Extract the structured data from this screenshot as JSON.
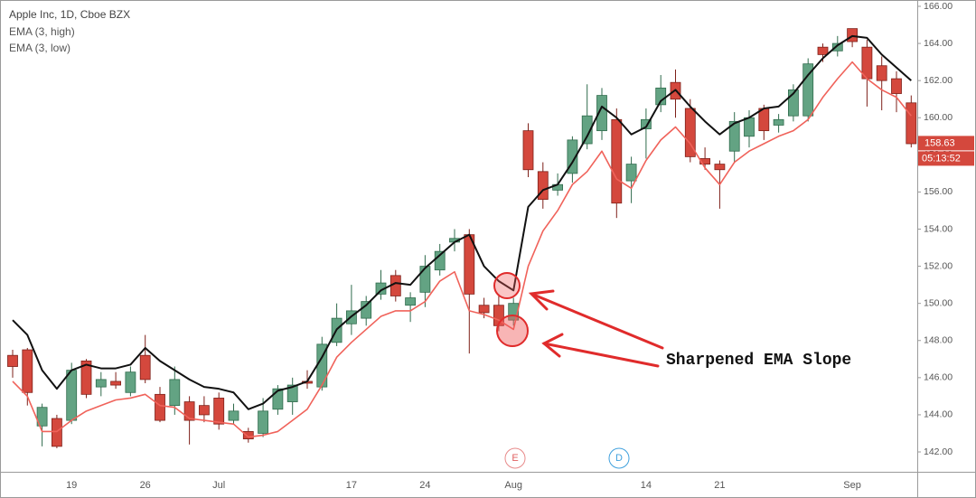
{
  "chart_data": {
    "type": "candlestick",
    "title": "Apple Inc, 1D, Cboe BZX",
    "annotation": "Sharpened EMA Slope",
    "last_price": 158.63,
    "countdown": "05:13:52",
    "events": [
      "E",
      "D"
    ],
    "up_color": "#63a383",
    "up_border": "#2f6b4c",
    "down_color": "#d4483d",
    "down_border": "#7e2019",
    "categories": [
      null,
      null,
      null,
      null,
      "19",
      null,
      null,
      null,
      null,
      "26",
      null,
      null,
      null,
      null,
      "Jul",
      null,
      null,
      null,
      null,
      null,
      null,
      null,
      null,
      "17",
      null,
      null,
      null,
      null,
      "24",
      null,
      null,
      null,
      null,
      null,
      "Aug",
      null,
      null,
      null,
      null,
      null,
      null,
      null,
      null,
      "14",
      null,
      null,
      null,
      null,
      "21",
      null,
      null,
      null,
      null,
      null,
      null,
      null,
      null,
      "Sep",
      null,
      null,
      null,
      null
    ],
    "open": [
      147.2,
      147.5,
      143.4,
      143.8,
      143.7,
      146.9,
      145.5,
      145.8,
      145.2,
      147.2,
      145.1,
      144.5,
      144.7,
      144.5,
      144.9,
      143.7,
      143.1,
      143.0,
      144.3,
      144.7,
      145.8,
      145.5,
      147.9,
      148.9,
      149.2,
      150.5,
      151.5,
      149.9,
      150.6,
      151.8,
      153.3,
      153.7,
      149.9,
      149.9,
      149.1,
      159.3,
      157.1,
      156.1,
      157.0,
      158.6,
      159.3,
      159.9,
      156.6,
      159.4,
      160.7,
      161.9,
      160.5,
      157.8,
      157.5,
      158.2,
      159.0,
      160.5,
      159.6,
      160.1,
      160.1,
      163.8,
      163.6,
      164.8,
      163.8,
      162.8,
      162.1,
      160.8
    ],
    "high": [
      147.5,
      147.6,
      144.6,
      144.0,
      146.8,
      147.0,
      146.3,
      146.3,
      146.6,
      148.3,
      145.5,
      146.6,
      145.0,
      145.0,
      145.2,
      144.6,
      143.3,
      144.9,
      145.6,
      146.0,
      146.4,
      148.2,
      150.0,
      151.0,
      150.4,
      151.8,
      151.8,
      150.6,
      152.6,
      153.2,
      154.0,
      154.0,
      150.3,
      150.5,
      150.3,
      159.7,
      157.6,
      157.0,
      159.0,
      161.8,
      161.6,
      160.5,
      157.9,
      160.5,
      162.3,
      162.6,
      161.0,
      158.4,
      157.7,
      160.3,
      160.4,
      160.7,
      160.2,
      161.8,
      163.2,
      164.0,
      164.4,
      164.8,
      164.2,
      163.3,
      162.5,
      161.2
    ],
    "low": [
      146.0,
      144.5,
      142.3,
      142.2,
      143.5,
      144.9,
      145.0,
      145.4,
      145.0,
      145.7,
      143.6,
      144.0,
      142.4,
      143.6,
      143.2,
      143.5,
      142.5,
      142.8,
      144.0,
      144.0,
      145.4,
      145.3,
      147.7,
      148.3,
      148.8,
      150.2,
      150.1,
      149.0,
      149.8,
      151.5,
      152.8,
      147.3,
      149.2,
      148.5,
      148.8,
      156.8,
      155.1,
      155.8,
      156.5,
      158.3,
      158.8,
      154.6,
      155.4,
      157.8,
      160.3,
      160.0,
      157.6,
      157.2,
      155.1,
      157.6,
      158.4,
      158.8,
      159.2,
      159.8,
      159.8,
      163.0,
      163.3,
      163.8,
      160.6,
      160.4,
      160.3,
      158.4
    ],
    "close": [
      146.6,
      145.2,
      144.4,
      142.3,
      146.4,
      145.1,
      145.9,
      145.6,
      146.3,
      145.9,
      143.7,
      145.9,
      143.7,
      144.0,
      143.5,
      144.2,
      142.7,
      144.2,
      145.4,
      145.6,
      145.7,
      147.8,
      149.2,
      149.6,
      150.1,
      151.1,
      150.4,
      150.3,
      152.0,
      152.8,
      153.5,
      150.5,
      149.5,
      148.8,
      150.0,
      157.2,
      155.6,
      156.4,
      158.8,
      160.1,
      161.2,
      155.4,
      157.5,
      159.9,
      161.6,
      161.0,
      157.9,
      157.5,
      157.2,
      159.8,
      160.0,
      159.3,
      159.9,
      161.5,
      162.9,
      163.4,
      164.0,
      164.1,
      162.1,
      162.0,
      161.3,
      158.6
    ],
    "series": [
      {
        "name": "EMA (3, high)",
        "color": "#111111",
        "values": [
          149.1,
          148.3,
          146.4,
          145.4,
          146.4,
          146.7,
          146.5,
          146.5,
          146.7,
          147.6,
          146.9,
          146.4,
          145.9,
          145.5,
          145.4,
          145.2,
          144.3,
          144.6,
          145.3,
          145.5,
          145.8,
          147.1,
          148.6,
          149.3,
          149.9,
          150.7,
          151.1,
          151.0,
          151.9,
          152.6,
          153.3,
          153.7,
          152.0,
          151.2,
          150.7,
          155.2,
          156.1,
          156.4,
          157.6,
          159.0,
          160.6,
          160.0,
          159.1,
          159.5,
          160.9,
          161.5,
          160.6,
          159.8,
          159.1,
          159.7,
          160.0,
          160.5,
          160.6,
          161.3,
          162.3,
          163.2,
          163.9,
          164.4,
          164.3,
          163.4,
          162.7,
          162.0
        ]
      },
      {
        "name": "EMA (3, low)",
        "color": "#f0625a",
        "values": [
          145.8,
          145.0,
          143.1,
          143.1,
          143.7,
          144.2,
          144.5,
          144.8,
          144.9,
          145.1,
          144.5,
          144.4,
          143.8,
          143.7,
          143.6,
          143.5,
          142.8,
          142.9,
          143.1,
          143.7,
          144.3,
          145.6,
          147.1,
          147.9,
          148.6,
          149.3,
          149.6,
          149.6,
          150.1,
          151.2,
          151.7,
          149.6,
          149.4,
          149.1,
          148.6,
          152.0,
          153.9,
          155.0,
          156.4,
          157.1,
          158.2,
          156.7,
          156.2,
          157.7,
          158.8,
          159.5,
          158.6,
          157.3,
          156.4,
          157.6,
          158.2,
          158.6,
          159.0,
          159.3,
          159.9,
          161.1,
          162.1,
          163.0,
          162.1,
          161.5,
          161.1,
          160.1
        ]
      }
    ],
    "ylim": [
      140.93,
      166.34
    ],
    "yticks": [
      {
        "value": 142,
        "label": "142.00"
      },
      {
        "value": 144,
        "label": "144.00"
      },
      {
        "value": 146,
        "label": "146.00"
      },
      {
        "value": 148,
        "label": "148.00"
      },
      {
        "value": 150,
        "label": "150.00"
      },
      {
        "value": 152,
        "label": "152.00"
      },
      {
        "value": 154,
        "label": "154.00"
      },
      {
        "value": 156,
        "label": "156.00"
      },
      {
        "value": 158,
        "label": "158.00"
      },
      {
        "value": 160,
        "label": "160.00"
      },
      {
        "value": 162,
        "label": "162.00"
      },
      {
        "value": 164,
        "label": "164.00"
      },
      {
        "value": 166,
        "label": "166.00"
      }
    ]
  }
}
